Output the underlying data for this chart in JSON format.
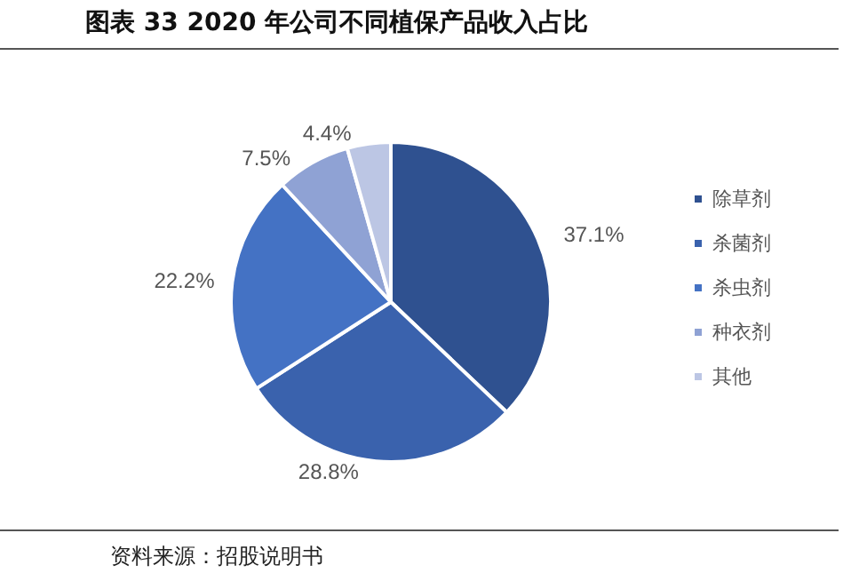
{
  "chart_data": {
    "type": "pie",
    "title": "图表 33 2020 年公司不同植保产品收入占比",
    "categories": [
      "除草剂",
      "杀菌剂",
      "杀虫剂",
      "种衣剂",
      "其他"
    ],
    "values": [
      37.1,
      28.8,
      22.2,
      7.5,
      4.4
    ],
    "colors": [
      "#2f5190",
      "#3a62ad",
      "#4472c4",
      "#8fa2d4",
      "#bcc6e4"
    ],
    "value_labels": [
      "37.1%",
      "28.8%",
      "22.2%",
      "7.5%",
      "4.4%"
    ],
    "legend": "right",
    "annotations": [
      "资料来源：招股说明书"
    ]
  }
}
